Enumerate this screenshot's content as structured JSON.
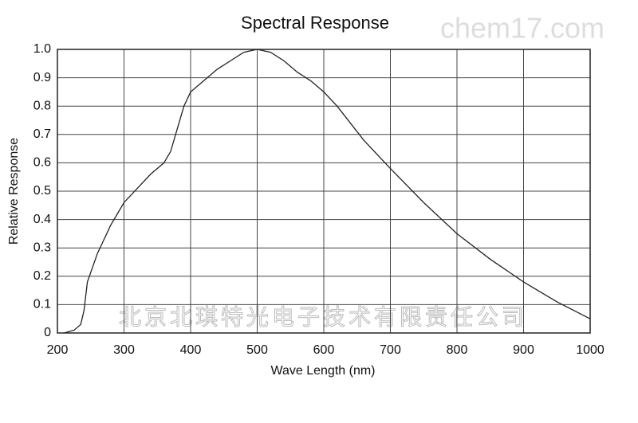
{
  "chart_data": {
    "type": "line",
    "title": "Spectral Response",
    "x_label": "Wave Length (nm)",
    "y_label": "Relative Response",
    "annotations": [
      "chem17.com",
      "北京北琪特光电子技术有限责任公司"
    ],
    "x": [
      210,
      225,
      235,
      240,
      245,
      260,
      280,
      300,
      320,
      340,
      360,
      370,
      380,
      390,
      400,
      420,
      440,
      460,
      480,
      500,
      520,
      540,
      560,
      580,
      600,
      620,
      640,
      660,
      700,
      750,
      800,
      850,
      900,
      950,
      1000
    ],
    "series": [
      {
        "name": "Relative Response",
        "color": "#222222",
        "values": [
          0.0,
          0.01,
          0.03,
          0.08,
          0.18,
          0.28,
          0.38,
          0.46,
          0.51,
          0.56,
          0.6,
          0.64,
          0.72,
          0.8,
          0.85,
          0.89,
          0.93,
          0.96,
          0.99,
          1.0,
          0.99,
          0.96,
          0.92,
          0.89,
          0.85,
          0.8,
          0.74,
          0.68,
          0.58,
          0.46,
          0.35,
          0.26,
          0.18,
          0.11,
          0.05
        ]
      }
    ],
    "xlim": [
      200,
      1000
    ],
    "xticks": [
      200,
      300,
      400,
      500,
      600,
      700,
      800,
      900,
      1000
    ],
    "ylim": [
      0,
      1
    ],
    "yticks": [
      0,
      0.1,
      0.2,
      0.3,
      0.4,
      0.5,
      0.6,
      0.7,
      0.8,
      0.9,
      {
        "value": 1,
        "label": "1.0"
      }
    ],
    "grid": true
  }
}
